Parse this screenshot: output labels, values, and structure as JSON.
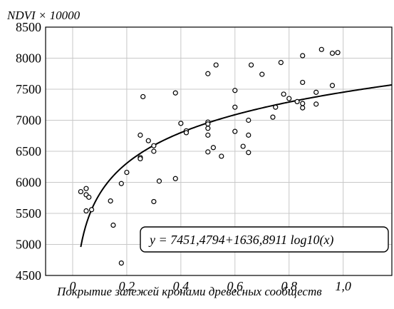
{
  "chart_data": {
    "type": "scatter",
    "ylabel": "NDVI × 10000",
    "xlabel": "Покрытие залежей кронами древесных сообществ",
    "xlim": [
      -0.1,
      1.18
    ],
    "ylim": [
      4500,
      8500
    ],
    "x_ticks": [
      0,
      0.2,
      0.4,
      0.6,
      0.8,
      1.0
    ],
    "x_tick_labels": [
      "0",
      "0,2",
      "0,4",
      "0,6",
      "0,8",
      "1,0"
    ],
    "y_ticks": [
      4500,
      5000,
      5500,
      6000,
      6500,
      7000,
      7500,
      8000,
      8500
    ],
    "y_tick_labels": [
      "4500",
      "5000",
      "5500",
      "6000",
      "6500",
      "7000",
      "7500",
      "8000",
      "8500"
    ],
    "grid": true,
    "points": [
      {
        "x": 0.03,
        "y": 5850
      },
      {
        "x": 0.05,
        "y": 5900
      },
      {
        "x": 0.05,
        "y": 5800
      },
      {
        "x": 0.06,
        "y": 5760
      },
      {
        "x": 0.05,
        "y": 5540
      },
      {
        "x": 0.07,
        "y": 5560
      },
      {
        "x": 0.14,
        "y": 5700
      },
      {
        "x": 0.15,
        "y": 5310
      },
      {
        "x": 0.18,
        "y": 5980
      },
      {
        "x": 0.18,
        "y": 4700
      },
      {
        "x": 0.2,
        "y": 6160
      },
      {
        "x": 0.25,
        "y": 6760
      },
      {
        "x": 0.25,
        "y": 6400
      },
      {
        "x": 0.25,
        "y": 6380
      },
      {
        "x": 0.26,
        "y": 7380
      },
      {
        "x": 0.28,
        "y": 6670
      },
      {
        "x": 0.3,
        "y": 6590
      },
      {
        "x": 0.3,
        "y": 6500
      },
      {
        "x": 0.3,
        "y": 5690
      },
      {
        "x": 0.32,
        "y": 6020
      },
      {
        "x": 0.38,
        "y": 6060
      },
      {
        "x": 0.38,
        "y": 7440
      },
      {
        "x": 0.4,
        "y": 6950
      },
      {
        "x": 0.42,
        "y": 6830
      },
      {
        "x": 0.42,
        "y": 6800
      },
      {
        "x": 0.5,
        "y": 7750
      },
      {
        "x": 0.5,
        "y": 6970
      },
      {
        "x": 0.5,
        "y": 6940
      },
      {
        "x": 0.5,
        "y": 6870
      },
      {
        "x": 0.5,
        "y": 6760
      },
      {
        "x": 0.5,
        "y": 6490
      },
      {
        "x": 0.52,
        "y": 6560
      },
      {
        "x": 0.53,
        "y": 7890
      },
      {
        "x": 0.55,
        "y": 6420
      },
      {
        "x": 0.6,
        "y": 7480
      },
      {
        "x": 0.6,
        "y": 7210
      },
      {
        "x": 0.6,
        "y": 6820
      },
      {
        "x": 0.63,
        "y": 6580
      },
      {
        "x": 0.65,
        "y": 7000
      },
      {
        "x": 0.65,
        "y": 6760
      },
      {
        "x": 0.65,
        "y": 6480
      },
      {
        "x": 0.66,
        "y": 7890
      },
      {
        "x": 0.7,
        "y": 7740
      },
      {
        "x": 0.74,
        "y": 7050
      },
      {
        "x": 0.75,
        "y": 7210
      },
      {
        "x": 0.77,
        "y": 7930
      },
      {
        "x": 0.78,
        "y": 7420
      },
      {
        "x": 0.8,
        "y": 7350
      },
      {
        "x": 0.83,
        "y": 7300
      },
      {
        "x": 0.85,
        "y": 8040
      },
      {
        "x": 0.85,
        "y": 7610
      },
      {
        "x": 0.85,
        "y": 7270
      },
      {
        "x": 0.85,
        "y": 7200
      },
      {
        "x": 0.9,
        "y": 7450
      },
      {
        "x": 0.9,
        "y": 7260
      },
      {
        "x": 0.92,
        "y": 8140
      },
      {
        "x": 0.96,
        "y": 8080
      },
      {
        "x": 0.96,
        "y": 7560
      },
      {
        "x": 0.98,
        "y": 8090
      }
    ],
    "fit": {
      "equation": "y = 7451,4794+1636,8911 log10(x)",
      "intercept": 7451.4794,
      "slope": 1636.8911,
      "x_range": [
        0.03,
        1.18
      ]
    }
  }
}
